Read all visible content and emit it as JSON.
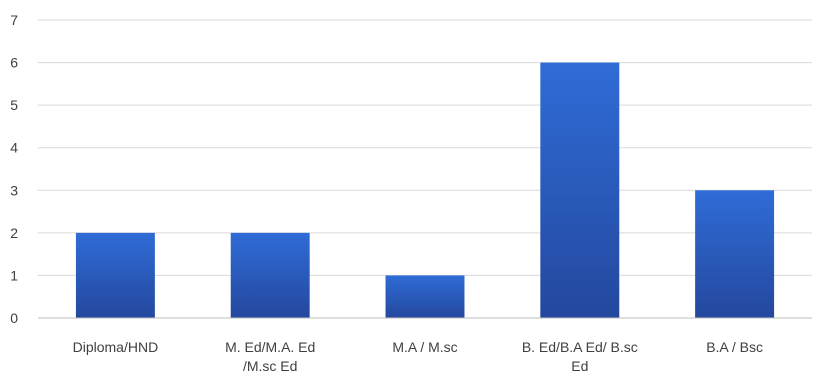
{
  "chart_data": {
    "type": "bar",
    "categories": [
      [
        "Diploma/HND"
      ],
      [
        "M. Ed/M.A. Ed",
        "/M.sc Ed"
      ],
      [
        "M.A / M.sc"
      ],
      [
        "B. Ed/B.A Ed/ B.sc",
        "Ed"
      ],
      [
        "B.A / Bsc"
      ]
    ],
    "values": [
      2,
      2,
      1,
      6,
      3
    ],
    "title": "",
    "xlabel": "",
    "ylabel": "",
    "ylim": [
      0,
      7
    ],
    "yticks": [
      "0",
      "1",
      "2",
      "3",
      "4",
      "5",
      "6",
      "7"
    ],
    "grid": true,
    "legend": "none",
    "colors": {
      "bar_top": "#2f6cd6",
      "bar_bottom": "#24489e",
      "grid": "#d9d9d9",
      "axis": "#bfbfbf",
      "text": "#404040"
    }
  }
}
